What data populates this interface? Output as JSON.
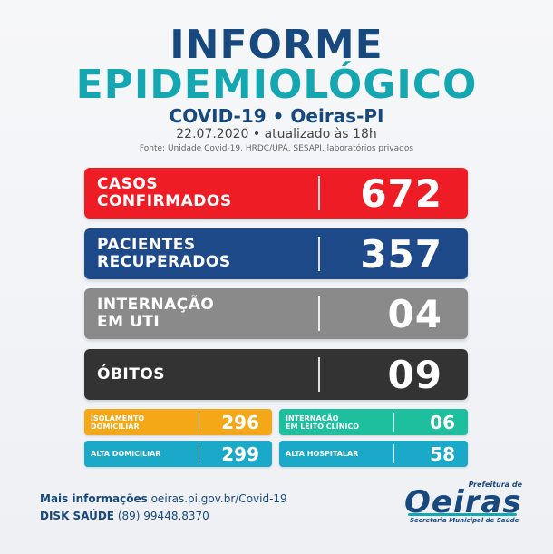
{
  "header": {
    "title_line1": "INFORME",
    "title_line2": "EPIDEMIOLÓGICO",
    "subtitle": "COVID-19 • Oeiras-PI",
    "date": "22.07.2020 • atualizado às 18h",
    "source": "Fonte: Unidade Covid-19, HRDC/UPA, SESAPI, laboratórios privados"
  },
  "cards": [
    {
      "label": "CASOS\nCONFIRMADOS",
      "value": "672",
      "color": "#ee1c24"
    },
    {
      "label": "PACIENTES\nRECUPERADOS",
      "value": "357",
      "color": "#1f4a8a"
    },
    {
      "label": "INTERNAÇÃO\nEM UTI",
      "value": "04",
      "color": "#8a8a8a"
    },
    {
      "label": "ÓBITOS",
      "value": "09",
      "color": "#333333"
    }
  ],
  "mini": [
    {
      "label": "ISOLAMENTO\nDOMICILIAR",
      "value": "296",
      "color": "#f4a717"
    },
    {
      "label": "INTERNAÇÃO\nEM LEITO CLÍNICO",
      "value": "06",
      "color": "#1dbf9e"
    },
    {
      "label": "ALTA DOMICILIAR",
      "value": "299",
      "color": "#1aa9c9"
    },
    {
      "label": "ALTA HOSPITALAR",
      "value": "58",
      "color": "#1aa9c9"
    }
  ],
  "footer": {
    "info_label": "Mais informações",
    "info_value": "oeiras.pi.gov.br/Covid-19",
    "disk_label": "DISK SAÚDE",
    "disk_value": "(89) 99448.8370"
  },
  "logo": {
    "prefeitura": "Prefeitura de",
    "name": "Oeiras",
    "secretaria": "Secretaria Municipal de Saúde"
  }
}
